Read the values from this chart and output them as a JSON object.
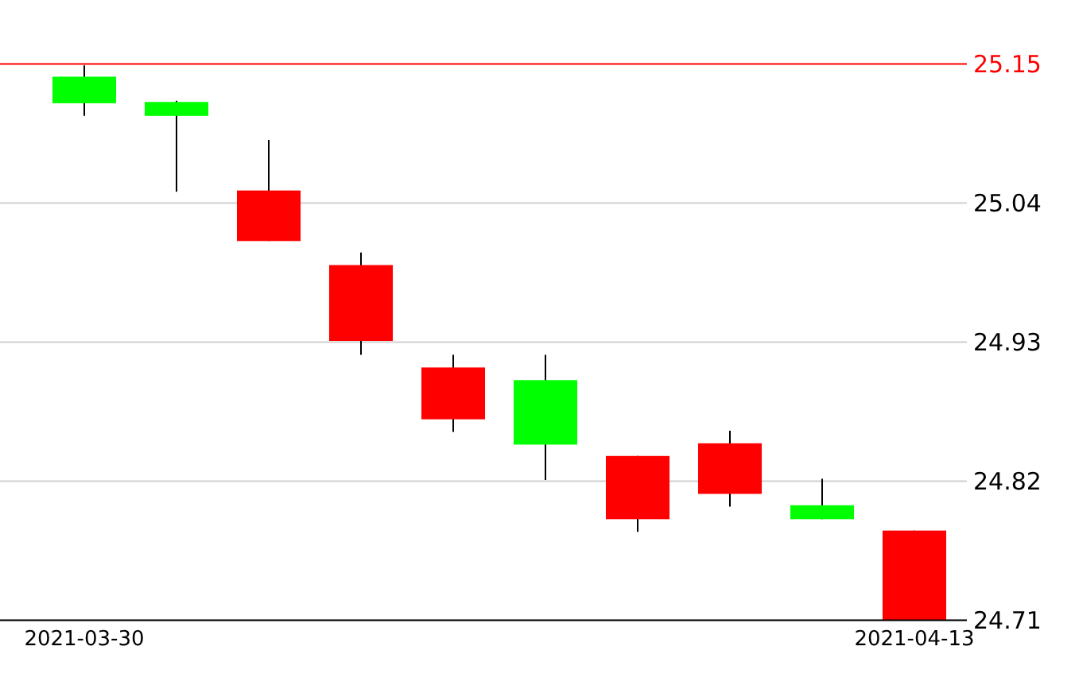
{
  "chart_data": {
    "type": "candlestick",
    "categories": [
      "2021-03-30",
      null,
      null,
      null,
      null,
      null,
      null,
      null,
      null,
      "2021-04-13"
    ],
    "ohlc": [
      [
        25.119,
        25.149,
        25.109,
        25.14
      ],
      [
        25.109,
        25.121,
        25.049,
        25.12
      ],
      [
        25.05,
        25.09,
        25.01,
        25.01
      ],
      [
        24.991,
        25.001,
        24.92,
        24.931
      ],
      [
        24.91,
        24.92,
        24.859,
        24.869
      ],
      [
        24.849,
        24.92,
        24.821,
        24.9
      ],
      [
        24.84,
        24.84,
        24.78,
        24.79
      ],
      [
        24.85,
        24.86,
        24.8,
        24.81
      ],
      [
        24.79,
        24.822,
        24.79,
        24.801
      ],
      [
        24.781,
        24.781,
        24.71,
        24.71
      ]
    ],
    "colors": [
      "#00ff00",
      "#00ff00",
      "#ff0000",
      "#ff0000",
      "#ff0000",
      "#00ff00",
      "#ff0000",
      "#ff0000",
      "#00ff00",
      "#ff0000"
    ],
    "ylim": [
      24.71,
      25.15
    ],
    "yticks": [
      25.15,
      25.04,
      24.93,
      24.82,
      24.71
    ],
    "grid": "y",
    "ref_lines": [
      {
        "axis": "y",
        "value": 25.15,
        "color": "#ff0000"
      }
    ]
  }
}
